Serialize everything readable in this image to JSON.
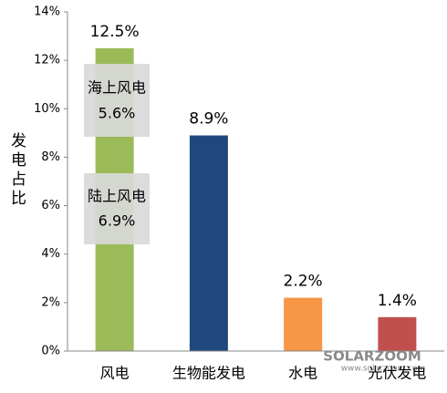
{
  "chart_data": {
    "type": "bar",
    "y_label": "发电占比",
    "categories": [
      "风电",
      "生物能发电",
      "水电",
      "光伏发电"
    ],
    "values": [
      12.5,
      8.9,
      2.2,
      1.4
    ],
    "value_labels": [
      "12.5%",
      "8.9%",
      "2.2%",
      "1.4%"
    ],
    "colors": [
      "#9bbb59",
      "#1f497d",
      "#f79646",
      "#c0504d"
    ],
    "ylim": [
      0,
      14
    ],
    "yticks": [
      {
        "value": 0,
        "label": "0%"
      },
      {
        "value": 2,
        "label": "2%"
      },
      {
        "value": 4,
        "label": "4%"
      },
      {
        "value": 6,
        "label": "6%"
      },
      {
        "value": 8,
        "label": "8%"
      },
      {
        "value": 10,
        "label": "10%"
      },
      {
        "value": 12,
        "label": "12%"
      },
      {
        "value": 14,
        "label": "14%"
      }
    ],
    "annotations": [
      {
        "title": "海上风电",
        "label": "5.6%"
      },
      {
        "title": "陆上风电",
        "label": "6.9%"
      }
    ],
    "watermark": {
      "brand": "SOLARZOOM",
      "url": "www.solarzoom.com"
    }
  }
}
